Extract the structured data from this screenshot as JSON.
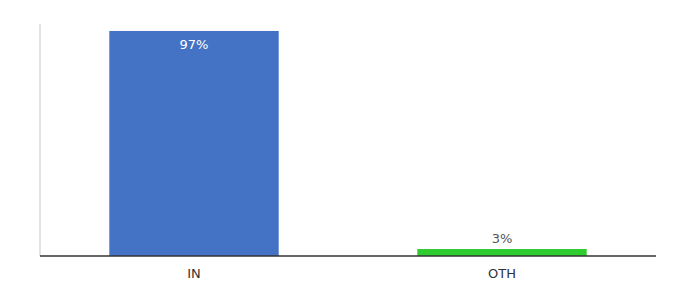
{
  "chart_data": {
    "type": "bar",
    "categories": [
      "IN",
      "OTH"
    ],
    "values": [
      97,
      3
    ],
    "value_labels": [
      "97%",
      "3%"
    ],
    "colors": [
      "#4472c4",
      "#2ecc2e"
    ],
    "ylim": [
      0,
      100
    ],
    "data_labels": true,
    "tick_labels": "x"
  }
}
